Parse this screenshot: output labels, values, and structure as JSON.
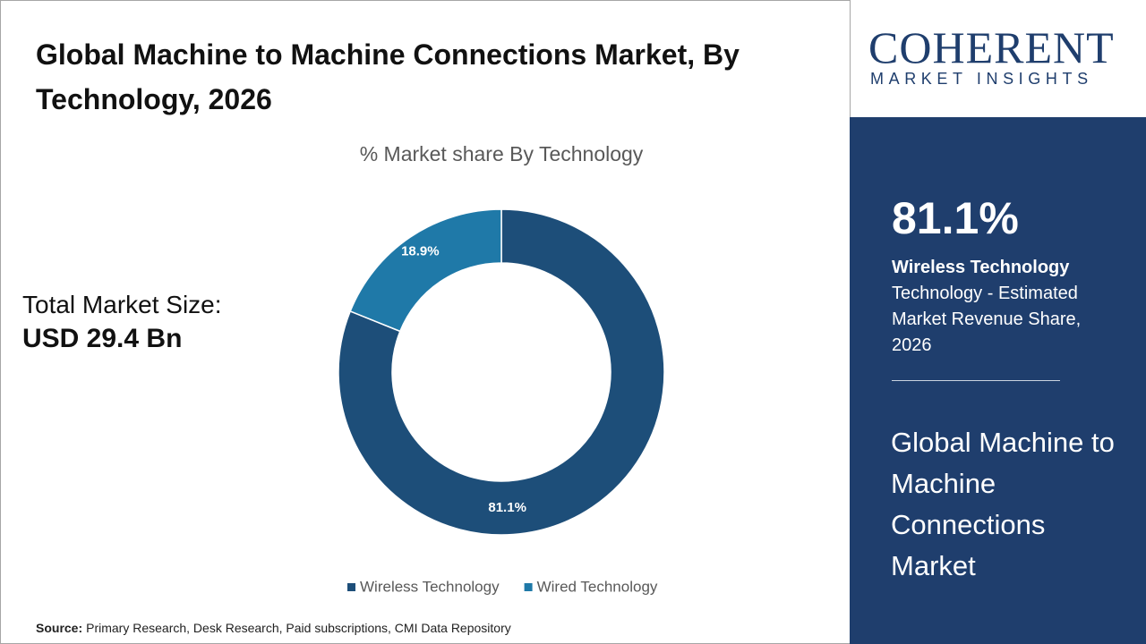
{
  "header": {
    "title": "Global Machine to Machine Connections Market, By Technology, 2026"
  },
  "market_size": {
    "label": "Total Market Size:",
    "value": "USD 29.4 Bn"
  },
  "chart_data": {
    "type": "donut",
    "title": "% Market share By Technology",
    "categories": [
      "Wireless Technology",
      "Wired Technology"
    ],
    "values": [
      81.1,
      18.9
    ],
    "value_labels": [
      "81.1%",
      "18.9%"
    ],
    "colors": [
      "#1d4e79",
      "#1f79a8"
    ],
    "legend": "bottom"
  },
  "sidebar": {
    "logo": {
      "name": "COHERENT",
      "tagline": "MARKET INSIGHTS"
    },
    "highlight": "81.1%",
    "segment": "Wireless Technology",
    "description": "Technology - Estimated Market Revenue Share, 2026",
    "market": "Global Machine to Machine Connections Market"
  },
  "source": {
    "label": "Source:",
    "text": "Primary Research, Desk Research, Paid subscriptions, CMI Data Repository"
  }
}
